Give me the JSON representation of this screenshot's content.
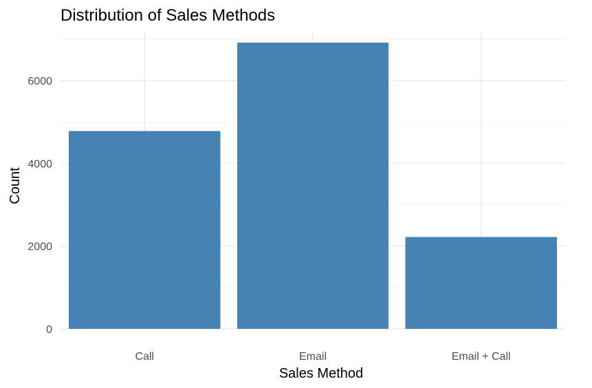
{
  "chart_data": {
    "type": "bar",
    "title": "Distribution of Sales Methods",
    "xlabel": "Sales Method",
    "ylabel": "Count",
    "categories": [
      "Call",
      "Email",
      "Email + Call"
    ],
    "values": [
      4780,
      6920,
      2220
    ],
    "ylim": [
      0,
      7200
    ],
    "y_ticks": [
      0,
      2000,
      4000,
      6000
    ],
    "y_tick_labels": [
      "0",
      "2000",
      "4000",
      "6000"
    ],
    "bar_color": "#4682B4",
    "grid": true,
    "legend": "none"
  }
}
